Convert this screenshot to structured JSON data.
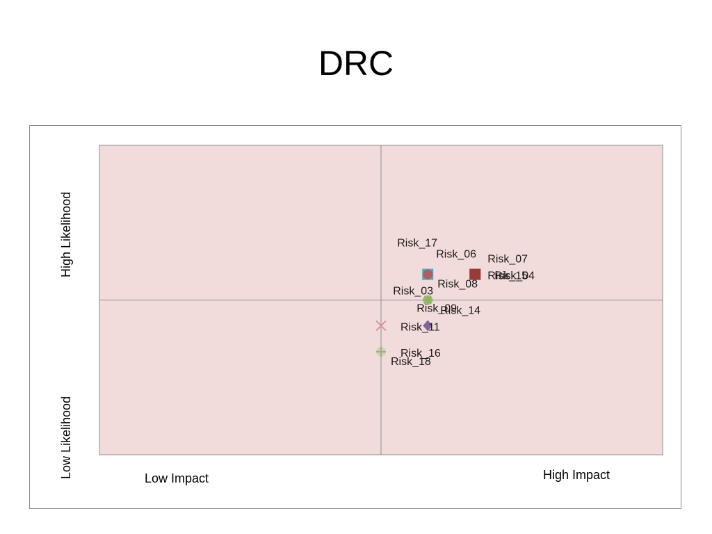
{
  "slide": {
    "title": "DRC"
  },
  "chart_data": {
    "type": "scatter",
    "title": "",
    "xlim": [
      0,
      10
    ],
    "ylim": [
      0,
      10
    ],
    "divider": {
      "x": 5,
      "y": 5
    },
    "plot_background": "#f2dcdb",
    "axis_text": {
      "x_low": "Low Impact",
      "x_high": "High Impact",
      "y_low": "Low Likelihood",
      "y_high": "High Likelihood"
    },
    "points": [
      {
        "label": "Risk_17",
        "x": 5.83,
        "y": 5.83,
        "marker": "triangle",
        "color": "#f79646",
        "label_pos": "above-far"
      },
      {
        "label": "Risk_06",
        "x": 5.83,
        "y": 5.83,
        "marker": "square",
        "color": "#4bacc6",
        "label_pos": "above"
      },
      {
        "label": "Risk_15",
        "x": 6.67,
        "y": 5.83,
        "marker": "triangle",
        "color": "#f79646",
        "label_pos": "left"
      },
      {
        "label": "Risk_07",
        "x": 6.67,
        "y": 5.83,
        "marker": "square",
        "color": "#c0504d",
        "label_pos": "above-right"
      },
      {
        "label": "Risk_04",
        "x": 6.67,
        "y": 5.83,
        "marker": "square",
        "color": "#9b3b39",
        "label_pos": "right"
      },
      {
        "label": "Risk_08",
        "x": 5.83,
        "y": 5.83,
        "marker": "circle",
        "color": "#c0504d",
        "label_pos": "below-right"
      },
      {
        "label": "Risk_03",
        "x": 5.83,
        "y": 5.0,
        "marker": "star",
        "color": "#4f81bd",
        "label_pos": "above-left"
      },
      {
        "label": "Risk_09",
        "x": 5.83,
        "y": 5.0,
        "marker": "circle",
        "color": "#9bbb59",
        "label_pos": "below"
      },
      {
        "label": "Risk_14",
        "x": 5.83,
        "y": 4.17,
        "marker": "diamond",
        "color": "#8064a2",
        "label_pos": "above-right"
      },
      {
        "label": "Risk_11",
        "x": 5.0,
        "y": 4.17,
        "marker": "x",
        "color": "#d99694",
        "label_pos": "right"
      },
      {
        "label": "Risk_16",
        "x": 5.0,
        "y": 3.33,
        "marker": "circle",
        "color": "#c3d69b",
        "label_pos": "right"
      },
      {
        "label": "Risk_18",
        "x": 5.0,
        "y": 3.33,
        "marker": "plus",
        "color": "#a6a6a6",
        "label_pos": "below-right"
      }
    ]
  }
}
